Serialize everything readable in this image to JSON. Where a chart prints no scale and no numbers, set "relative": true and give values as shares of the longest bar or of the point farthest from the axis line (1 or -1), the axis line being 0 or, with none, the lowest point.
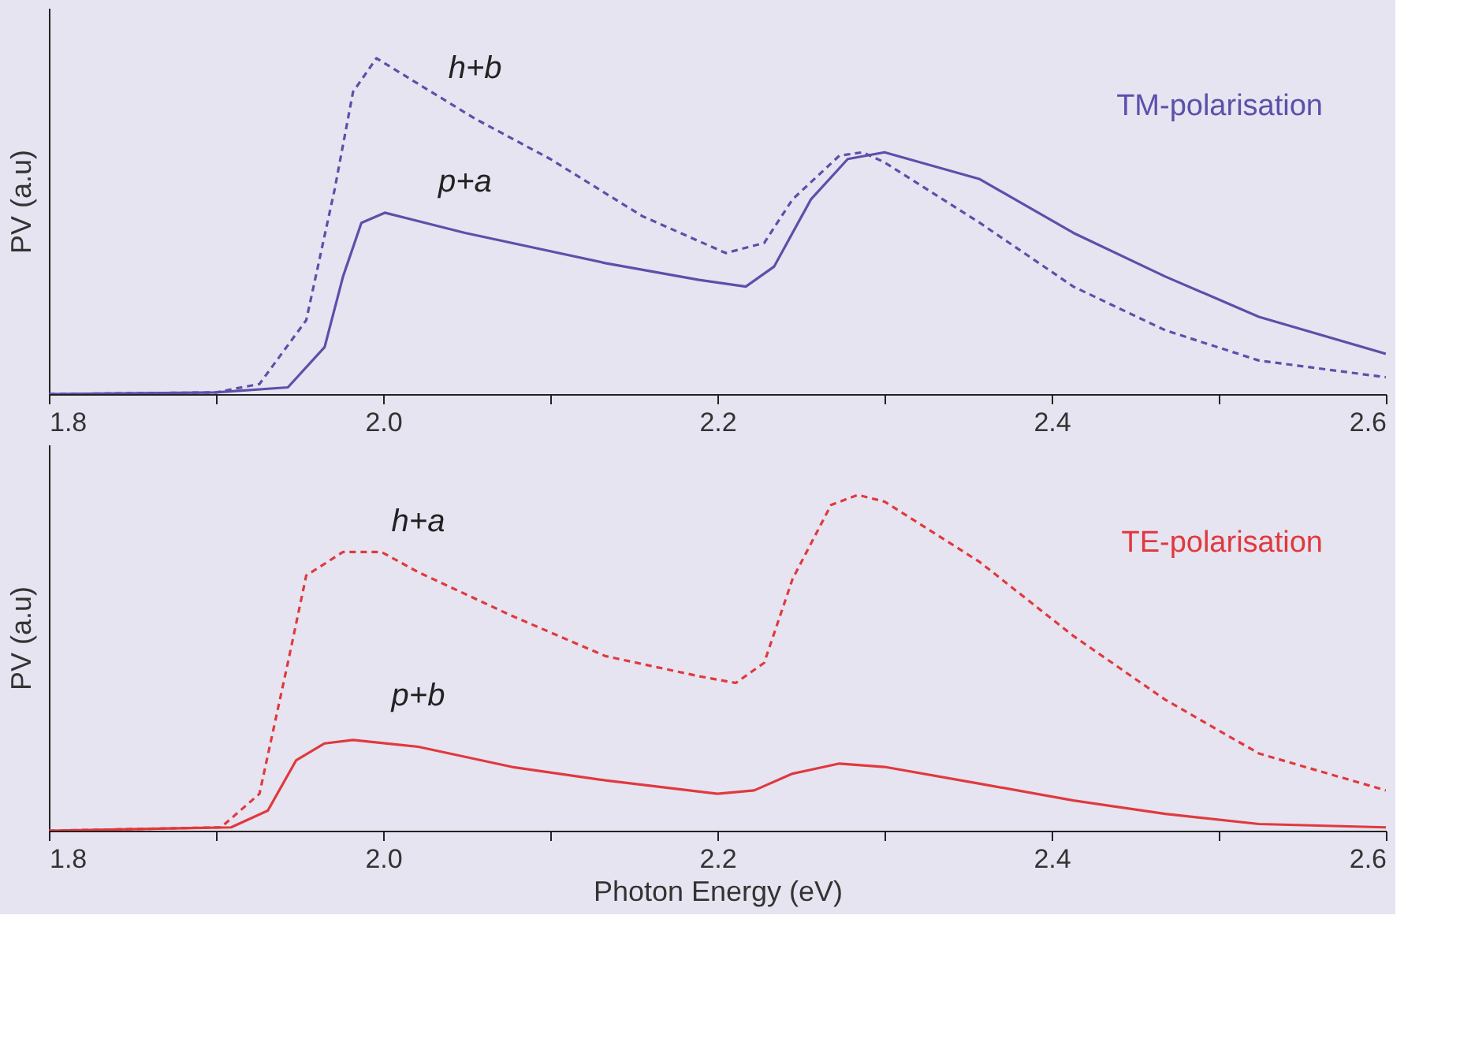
{
  "chart_data": [
    {
      "type": "line",
      "title": "TM-polarisation",
      "ylabel": "PV (a.u)",
      "relative": true,
      "tick_labels": "x",
      "grid": false,
      "marker": "none",
      "xlim": [
        1.8,
        2.6
      ],
      "xticks": [
        1.8,
        {
          "value": 1.9,
          "label": null
        },
        {
          "value": 2.0,
          "label": "2.0"
        },
        {
          "value": 2.1,
          "label": null
        },
        2.2,
        {
          "value": 2.3,
          "label": null
        },
        2.4,
        {
          "value": 2.5,
          "label": null
        },
        2.6
      ],
      "series": [
        {
          "name": "h+b",
          "color": "#5b50aa",
          "line_style": "dashed",
          "x": [
            1.8,
            1.9,
            1.926,
            1.954,
            1.971,
            1.982,
            1.996,
            2.055,
            2.1,
            2.155,
            2.205,
            2.228,
            2.245,
            2.273,
            2.287,
            2.3,
            2.357,
            2.413,
            2.468,
            2.524,
            2.6
          ],
          "values": [
            0,
            0.005,
            0.03,
            0.22,
            0.61,
            0.9,
            1.0,
            0.82,
            0.7,
            0.53,
            0.42,
            0.45,
            0.58,
            0.71,
            0.72,
            0.69,
            0.51,
            0.32,
            0.19,
            0.1,
            0.05
          ]
        },
        {
          "name": "p+a",
          "color": "#5b50aa",
          "line_style": "solid",
          "x": [
            1.8,
            1.9,
            1.943,
            1.965,
            1.976,
            1.987,
            2.001,
            2.049,
            2.133,
            2.189,
            2.217,
            2.234,
            2.256,
            2.278,
            2.3,
            2.357,
            2.413,
            2.468,
            2.524,
            2.6
          ],
          "values": [
            0,
            0.005,
            0.02,
            0.14,
            0.35,
            0.51,
            0.54,
            0.48,
            0.39,
            0.34,
            0.32,
            0.38,
            0.58,
            0.7,
            0.72,
            0.64,
            0.48,
            0.35,
            0.23,
            0.12
          ]
        }
      ]
    },
    {
      "type": "line",
      "title": "TE-polarisation",
      "ylabel": "PV (a.u)",
      "xlabel": "Photon Energy (eV)",
      "relative": true,
      "tick_labels": "x",
      "grid": false,
      "marker": "none",
      "xlim": [
        1.8,
        2.6
      ],
      "xticks": [
        1.8,
        {
          "value": 1.9,
          "label": null
        },
        {
          "value": 2.0,
          "label": "2.0"
        },
        {
          "value": 2.1,
          "label": null
        },
        2.2,
        {
          "value": 2.3,
          "label": null
        },
        2.4,
        {
          "value": 2.5,
          "label": null
        },
        2.6
      ],
      "series": [
        {
          "name": "h+a",
          "color": "#e0393e",
          "line_style": "dashed",
          "x": [
            1.8,
            1.903,
            1.926,
            1.943,
            1.954,
            1.976,
            1.999,
            2.021,
            2.077,
            2.133,
            2.189,
            2.211,
            2.228,
            2.245,
            2.268,
            2.284,
            2.3,
            2.357,
            2.413,
            2.468,
            2.524,
            2.6
          ],
          "values": [
            0,
            0.01,
            0.11,
            0.5,
            0.76,
            0.83,
            0.83,
            0.77,
            0.64,
            0.52,
            0.46,
            0.44,
            0.5,
            0.75,
            0.97,
            1.0,
            0.98,
            0.8,
            0.58,
            0.39,
            0.23,
            0.12
          ]
        },
        {
          "name": "p+b",
          "color": "#e0393e",
          "line_style": "solid",
          "x": [
            1.8,
            1.909,
            1.931,
            1.948,
            1.965,
            1.982,
            2.021,
            2.077,
            2.133,
            2.2,
            2.222,
            2.245,
            2.273,
            2.3,
            2.357,
            2.413,
            2.468,
            2.524,
            2.6
          ],
          "values": [
            0,
            0.01,
            0.06,
            0.21,
            0.26,
            0.27,
            0.25,
            0.19,
            0.15,
            0.11,
            0.12,
            0.17,
            0.2,
            0.19,
            0.14,
            0.09,
            0.05,
            0.02,
            0.01
          ]
        }
      ]
    }
  ]
}
